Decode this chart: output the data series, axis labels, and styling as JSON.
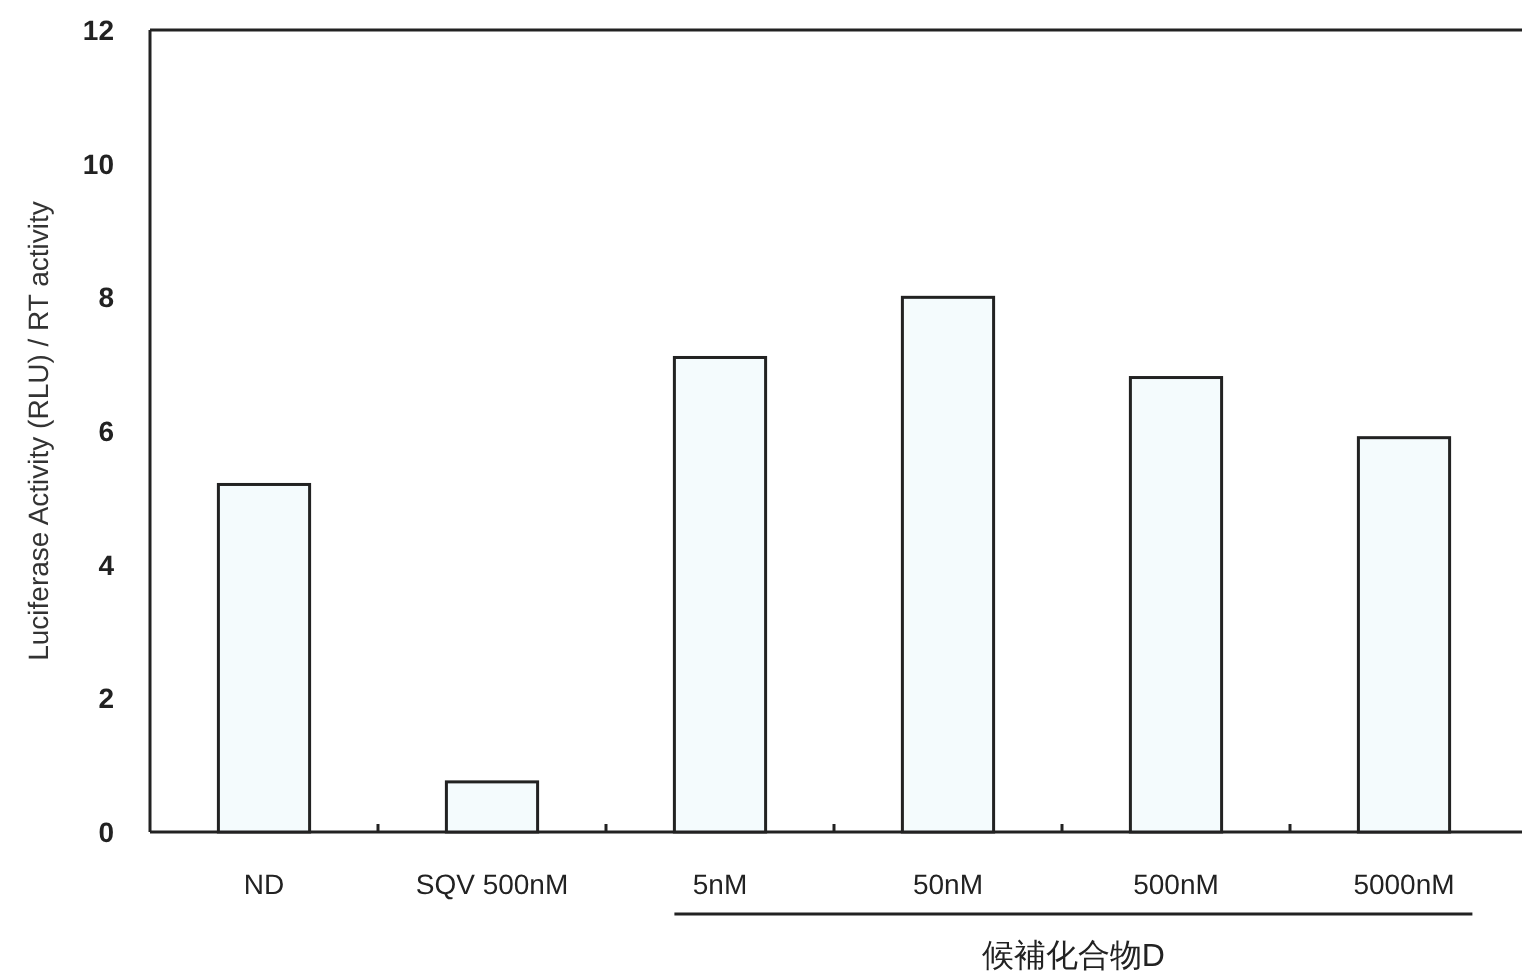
{
  "chart_data": {
    "type": "bar",
    "ylabel": "Luciferase Activity (RLU) / RT activity",
    "categories": [
      "ND",
      "SQV 500nM",
      "5nM",
      "50nM",
      "500nM",
      "5000nM"
    ],
    "values": [
      5.2,
      0.75,
      7.1,
      8.0,
      6.8,
      5.9
    ],
    "color": "#f4fbfd",
    "ylim": [
      0,
      12
    ],
    "yticks": [
      0,
      2,
      4,
      6,
      8,
      10,
      12
    ],
    "annotations": [
      "候補化合物D"
    ]
  }
}
